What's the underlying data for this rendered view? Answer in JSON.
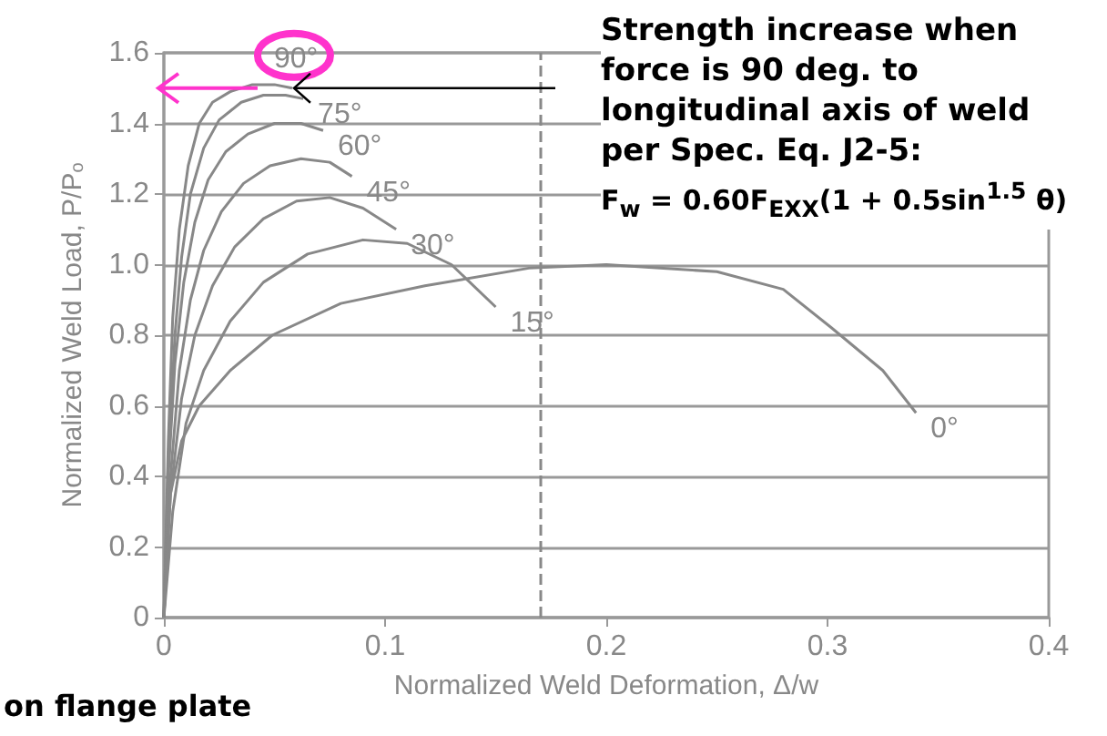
{
  "chart_data": {
    "type": "line",
    "xlabel": "Normalized Weld Deformation, Δ/w",
    "ylabel": "Normalized Weld Load, P/P$_{o}$",
    "xlim": [
      0,
      0.4
    ],
    "xticks": [
      0,
      0.1,
      0.2,
      0.3,
      0.4
    ],
    "ylim": [
      0,
      1.6
    ],
    "yticks": [
      0,
      {
        "value": 0.2,
        "label": "0.2"
      },
      {
        "value": 0.4,
        "label": "0.4"
      },
      {
        "value": 0.6,
        "label": "0.6"
      },
      {
        "value": 0.8,
        "label": "0.8"
      },
      {
        "value": 1.0,
        "label": "1.0"
      },
      {
        "value": 1.2,
        "label": "1.2"
      },
      {
        "value": 1.4,
        "label": "1.4"
      },
      {
        "value": 1.6,
        "label": "1.6"
      }
    ],
    "grid": "y",
    "marker": "none",
    "line_style": "solid",
    "legend": false,
    "series": [
      {
        "name": "90°",
        "color": "#888888",
        "x": [
          0,
          0.002,
          0.004,
          0.007,
          0.011,
          0.016,
          0.022,
          0.03,
          0.04,
          0.05,
          0.058
        ],
        "values": [
          0,
          0.5,
          0.85,
          1.1,
          1.28,
          1.4,
          1.46,
          1.49,
          1.51,
          1.51,
          1.5
        ]
      },
      {
        "name": "75°",
        "color": "#888888",
        "x": [
          0,
          0.002,
          0.005,
          0.008,
          0.012,
          0.018,
          0.025,
          0.035,
          0.045,
          0.055,
          0.063
        ],
        "values": [
          0,
          0.45,
          0.8,
          1.02,
          1.2,
          1.33,
          1.41,
          1.46,
          1.48,
          1.48,
          1.47
        ]
      },
      {
        "name": "60°",
        "color": "#888888",
        "x": [
          0,
          0.002,
          0.005,
          0.009,
          0.014,
          0.02,
          0.028,
          0.038,
          0.05,
          0.062,
          0.072
        ],
        "values": [
          0,
          0.4,
          0.72,
          0.95,
          1.12,
          1.24,
          1.32,
          1.37,
          1.4,
          1.4,
          1.38
        ]
      },
      {
        "name": "45°",
        "color": "#888888",
        "x": [
          0,
          0.003,
          0.007,
          0.012,
          0.018,
          0.026,
          0.036,
          0.048,
          0.062,
          0.075,
          0.085
        ],
        "values": [
          0,
          0.4,
          0.7,
          0.9,
          1.04,
          1.15,
          1.23,
          1.28,
          1.3,
          1.29,
          1.25
        ]
      },
      {
        "name": "30°",
        "color": "#888888",
        "x": [
          0,
          0.003,
          0.008,
          0.014,
          0.022,
          0.032,
          0.045,
          0.06,
          0.075,
          0.09,
          0.105
        ],
        "values": [
          0,
          0.35,
          0.62,
          0.8,
          0.94,
          1.05,
          1.13,
          1.18,
          1.19,
          1.16,
          1.1
        ]
      },
      {
        "name": "15°",
        "color": "#888888",
        "x": [
          0,
          0.004,
          0.01,
          0.018,
          0.03,
          0.045,
          0.065,
          0.09,
          0.11,
          0.13,
          0.15
        ],
        "values": [
          0,
          0.3,
          0.55,
          0.7,
          0.84,
          0.95,
          1.03,
          1.07,
          1.06,
          1.0,
          0.88
        ]
      },
      {
        "name": "0°",
        "color": "#888888",
        "x": [
          0,
          0.003,
          0.008,
          0.016,
          0.03,
          0.049,
          0.08,
          0.118,
          0.165,
          0.2,
          0.25,
          0.28,
          0.302,
          0.325,
          0.34
        ],
        "values": [
          0,
          0.35,
          0.5,
          0.6,
          0.7,
          0.8,
          0.89,
          0.94,
          0.99,
          1.0,
          0.98,
          0.93,
          0.82,
          0.7,
          0.58
        ]
      }
    ],
    "ref_lines": [
      {
        "axis": "x",
        "value": 0.17,
        "line_style": "dashed",
        "color": "#888888"
      }
    ],
    "annotations": [
      "Strength increase when force is 90 deg. to longitudinal axis of weld per Spec. Eq. J2-5:",
      "F$_{w}$ = 0.60F$_{EXX}$(1 + 0.5sin$^{1.5}$ θ)",
      "on flange plate"
    ]
  }
}
